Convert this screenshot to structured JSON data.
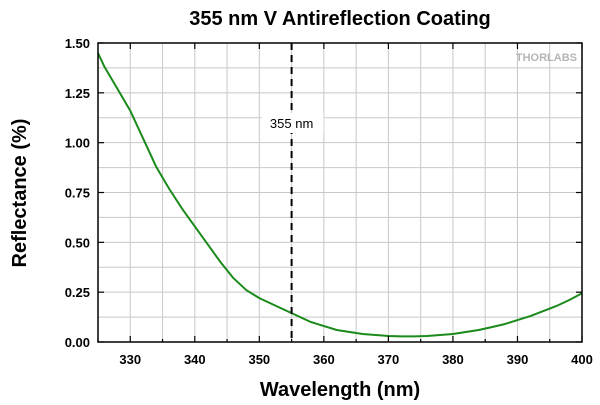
{
  "chart_data": {
    "type": "line",
    "title": "355 nm V Antireflection Coating",
    "xlabel": "Wavelength (nm)",
    "ylabel": "Reflectance (%)",
    "xlim": [
      325,
      400
    ],
    "ylim": [
      0,
      1.5
    ],
    "grid": true,
    "x_ticks": [
      330,
      340,
      350,
      360,
      370,
      380,
      390,
      400
    ],
    "x_tick_labels": [
      "330",
      "340",
      "350",
      "360",
      "370",
      "380",
      "390",
      "400"
    ],
    "y_ticks": [
      0,
      0.25,
      0.5,
      0.75,
      1.0,
      1.25,
      1.5
    ],
    "y_tick_labels": [
      "0.00",
      "0.25",
      "0.50",
      "0.75",
      "1.00",
      "1.25",
      "1.50"
    ],
    "series": [
      {
        "name": "Reflectance",
        "color": "#1a8a1a",
        "x": [
          325,
          326,
          328,
          330,
          332,
          334,
          336,
          338,
          340,
          342,
          344,
          346,
          348,
          350,
          352,
          354,
          356,
          358,
          360,
          362,
          364,
          366,
          368,
          370,
          372,
          374,
          376,
          378,
          380,
          382,
          384,
          386,
          388,
          390,
          392,
          394,
          396,
          398,
          400
        ],
        "values": [
          1.45,
          1.38,
          1.27,
          1.16,
          1.02,
          0.88,
          0.77,
          0.67,
          0.58,
          0.49,
          0.4,
          0.32,
          0.26,
          0.22,
          0.19,
          0.16,
          0.13,
          0.1,
          0.08,
          0.06,
          0.05,
          0.04,
          0.035,
          0.03,
          0.028,
          0.028,
          0.03,
          0.035,
          0.04,
          0.05,
          0.06,
          0.075,
          0.09,
          0.11,
          0.13,
          0.155,
          0.18,
          0.21,
          0.245
        ]
      }
    ],
    "annotations": [
      {
        "type": "vline",
        "x": 355,
        "style": "dashed",
        "label": "355 nm"
      }
    ]
  },
  "branding": {
    "logo_text": "THORLABS"
  }
}
